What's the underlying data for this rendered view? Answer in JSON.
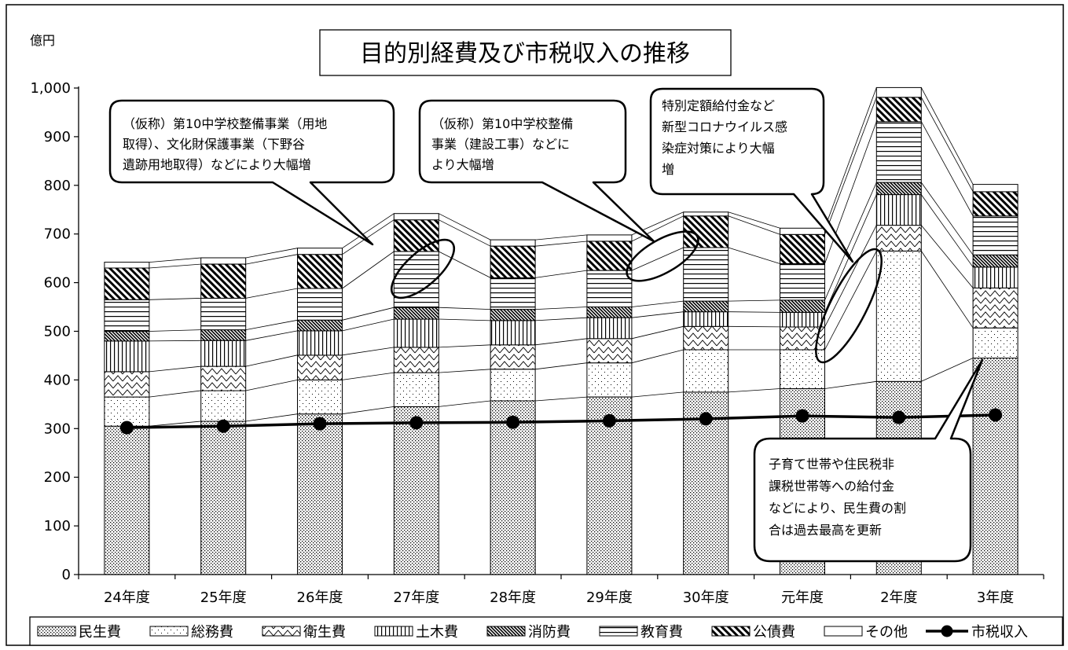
{
  "chart_data": {
    "type": "bar",
    "stacked": true,
    "title": "目的別経費及び市税収入の推移",
    "ylabel": "億円",
    "xlabel": "",
    "ylim": [
      0,
      1000
    ],
    "yticks": [
      "0",
      "100",
      "200",
      "300",
      "400",
      "500",
      "600",
      "700",
      "800",
      "900",
      "1,000"
    ],
    "categories": [
      "24年度",
      "25年度",
      "26年度",
      "27年度",
      "28年度",
      "29年度",
      "30年度",
      "元年度",
      "2年度",
      "3年度"
    ],
    "grid": false,
    "legend_position": "bottom",
    "series": [
      {
        "name": "民生費",
        "pattern": "crosshatch",
        "values": [
          305,
          315,
          330,
          345,
          357,
          365,
          375,
          382,
          397,
          445
        ]
      },
      {
        "name": "総務費",
        "pattern": "dots",
        "values": [
          60,
          63,
          70,
          70,
          65,
          70,
          87,
          80,
          268,
          62
        ]
      },
      {
        "name": "衛生費",
        "pattern": "zigzag",
        "values": [
          52,
          50,
          51,
          52,
          50,
          50,
          48,
          47,
          53,
          82
        ]
      },
      {
        "name": "土木費",
        "pattern": "vertical",
        "values": [
          63,
          53,
          50,
          58,
          50,
          43,
          30,
          30,
          63,
          43
        ]
      },
      {
        "name": "消防費",
        "pattern": "diagonal-dense",
        "values": [
          20,
          22,
          22,
          24,
          23,
          22,
          22,
          25,
          25,
          25
        ]
      },
      {
        "name": "教育費",
        "pattern": "horizontal",
        "values": [
          65,
          65,
          65,
          115,
          65,
          75,
          110,
          75,
          125,
          80
        ]
      },
      {
        "name": "公債費",
        "pattern": "diagonal-wide",
        "values": [
          65,
          70,
          70,
          65,
          65,
          60,
          65,
          60,
          50,
          50
        ]
      },
      {
        "name": "その他",
        "pattern": "blank",
        "values": [
          12,
          13,
          13,
          13,
          13,
          13,
          8,
          13,
          20,
          15
        ]
      }
    ],
    "line_series": {
      "name": "市税収入",
      "values": [
        302,
        305,
        310,
        312,
        313,
        316,
        320,
        326,
        323,
        328
      ]
    },
    "annotations": [
      "（仮称）第10中学校整備事業（用地取得）、文化財保護事業（下野谷遺跡用地取得）などにより大幅増",
      "（仮称）第10中学校整備事業（建設工事）などにより大幅増",
      "特別定額給付金など新型コロナウイルス感染症対策により大幅増",
      "子育て世帯や住民税非課税世帯等への給付金などにより、民生費の割合は過去最高を更新"
    ]
  },
  "callouts": {
    "c1": [
      "（仮称）第10中学校整備事業（用地",
      "取得）、文化財保護事業（下野谷",
      "遺跡用地取得）などにより大幅増"
    ],
    "c2": [
      "（仮称）第10中学校整備",
      "事業（建設工事）などに",
      "より大幅増"
    ],
    "c3": [
      "特別定額給付金など",
      "新型コロナウイルス感",
      "染症対策により大幅",
      "増"
    ],
    "c4": [
      "子育て世帯や住民税非",
      "課税世帯等への給付金",
      "などにより、民生費の割",
      "合は過去最高を更新"
    ]
  }
}
